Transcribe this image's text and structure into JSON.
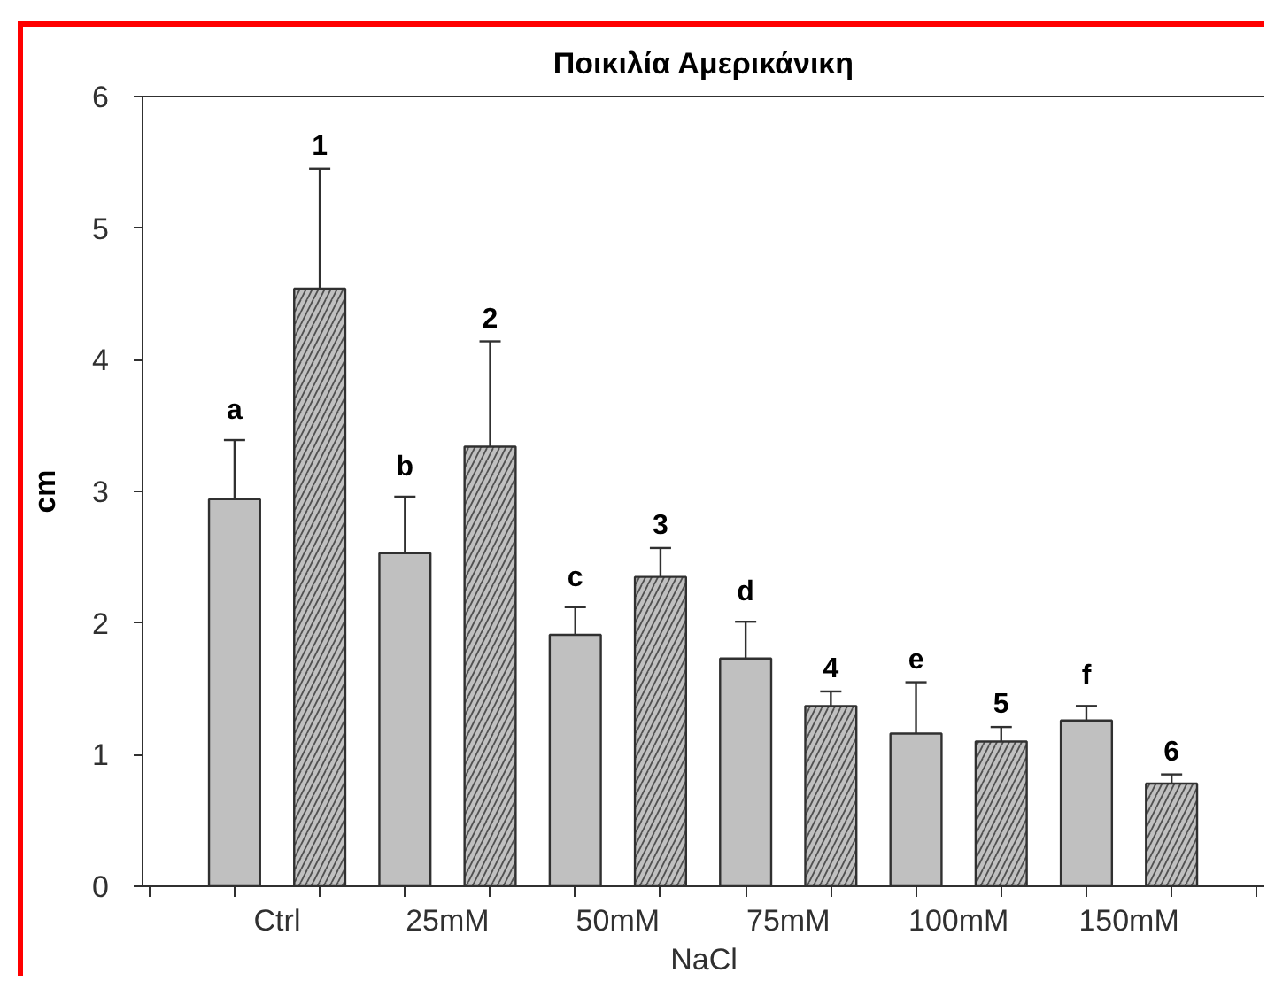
{
  "chart_data": {
    "type": "bar",
    "title": "Ποικιλία Αμερικάνικη",
    "xlabel": "NaCl",
    "ylabel": "cm",
    "categories": [
      "Ctrl",
      "25mM",
      "50mM",
      "75mM",
      "100mM",
      "150mM"
    ],
    "series": [
      {
        "color": "#c0c0c0",
        "values": [
          2.94,
          2.53,
          1.91,
          1.73,
          1.16,
          1.26
        ],
        "errors": [
          [
            2.94,
            3.39
          ],
          [
            2.53,
            2.96
          ],
          [
            1.91,
            2.12
          ],
          [
            1.73,
            2.01
          ],
          [
            1.16,
            1.55
          ],
          [
            1.26,
            1.37
          ]
        ]
      },
      {
        "color": "#c0c0c0",
        "values": [
          4.54,
          3.34,
          2.35,
          1.37,
          1.1,
          0.78
        ],
        "errors": [
          [
            4.54,
            5.45
          ],
          [
            3.34,
            4.14
          ],
          [
            2.35,
            2.57
          ],
          [
            1.37,
            1.48
          ],
          [
            1.1,
            1.21
          ],
          [
            0.78,
            0.85
          ]
        ]
      }
    ],
    "annotations": [
      "a",
      "1",
      "b",
      "2",
      "c",
      "3",
      "d",
      "4",
      "e",
      "5",
      "f",
      "6"
    ],
    "ylim": [
      0,
      6
    ],
    "yticks": [
      0,
      1,
      2,
      3,
      4,
      5,
      6
    ],
    "grid": false
  }
}
